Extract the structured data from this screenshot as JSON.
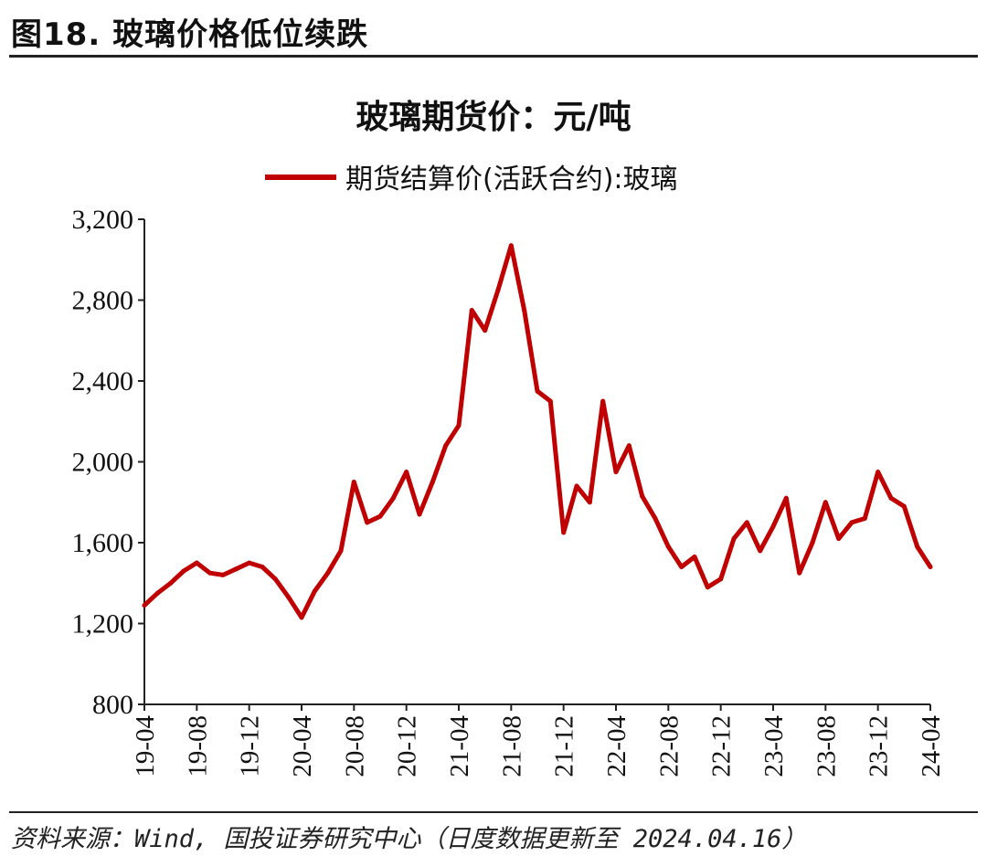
{
  "figure": {
    "title": "图18. 玻璃价格低位续跌",
    "source": "资料来源：Wind, 国投证券研究中心（日度数据更新至 2024.04.16）"
  },
  "chart_data": {
    "type": "line",
    "title": "玻璃期货价：元/吨",
    "ylim": [
      800,
      3200
    ],
    "yticks": [
      800,
      1200,
      1600,
      2000,
      2400,
      2800,
      3200
    ],
    "ytick_labels": [
      "800",
      "1,200",
      "1,600",
      "2,000",
      "2,400",
      "2,800",
      "3,200"
    ],
    "xlim": [
      "2019-04",
      "2024-04"
    ],
    "x_tick_labels": [
      "19-04",
      "19-08",
      "19-12",
      "20-04",
      "20-08",
      "20-12",
      "21-04",
      "21-08",
      "21-12",
      "22-04",
      "22-08",
      "22-12",
      "23-04",
      "23-08",
      "23-12",
      "24-04"
    ],
    "legend_position": "top-center",
    "series": [
      {
        "name": "期货结算价(活跃合约):玻璃",
        "color": "#c00000",
        "points": [
          [
            "2019-04",
            1290
          ],
          [
            "2019-05",
            1350
          ],
          [
            "2019-06",
            1400
          ],
          [
            "2019-07",
            1460
          ],
          [
            "2019-08",
            1500
          ],
          [
            "2019-09",
            1450
          ],
          [
            "2019-10",
            1440
          ],
          [
            "2019-11",
            1470
          ],
          [
            "2019-12",
            1500
          ],
          [
            "2020-01",
            1480
          ],
          [
            "2020-02",
            1420
          ],
          [
            "2020-03",
            1330
          ],
          [
            "2020-04",
            1230
          ],
          [
            "2020-05",
            1360
          ],
          [
            "2020-06",
            1450
          ],
          [
            "2020-07",
            1560
          ],
          [
            "2020-08",
            1900
          ],
          [
            "2020-09",
            1700
          ],
          [
            "2020-10",
            1730
          ],
          [
            "2020-11",
            1820
          ],
          [
            "2020-12",
            1950
          ],
          [
            "2021-01",
            1740
          ],
          [
            "2021-02",
            1900
          ],
          [
            "2021-03",
            2080
          ],
          [
            "2021-04",
            2180
          ],
          [
            "2021-05",
            2750
          ],
          [
            "2021-06",
            2650
          ],
          [
            "2021-07",
            2850
          ],
          [
            "2021-08",
            3070
          ],
          [
            "2021-09",
            2750
          ],
          [
            "2021-10",
            2350
          ],
          [
            "2021-11",
            2300
          ],
          [
            "2021-12",
            1650
          ],
          [
            "2022-01",
            1880
          ],
          [
            "2022-02",
            1800
          ],
          [
            "2022-03",
            2300
          ],
          [
            "2022-04",
            1950
          ],
          [
            "2022-05",
            2080
          ],
          [
            "2022-06",
            1830
          ],
          [
            "2022-07",
            1720
          ],
          [
            "2022-08",
            1580
          ],
          [
            "2022-09",
            1480
          ],
          [
            "2022-10",
            1530
          ],
          [
            "2022-11",
            1380
          ],
          [
            "2022-12",
            1420
          ],
          [
            "2023-01",
            1620
          ],
          [
            "2023-02",
            1700
          ],
          [
            "2023-03",
            1560
          ],
          [
            "2023-04",
            1680
          ],
          [
            "2023-05",
            1820
          ],
          [
            "2023-06",
            1450
          ],
          [
            "2023-07",
            1600
          ],
          [
            "2023-08",
            1800
          ],
          [
            "2023-09",
            1620
          ],
          [
            "2023-10",
            1700
          ],
          [
            "2023-11",
            1720
          ],
          [
            "2023-12",
            1950
          ],
          [
            "2024-01",
            1820
          ],
          [
            "2024-02",
            1780
          ],
          [
            "2024-03",
            1580
          ],
          [
            "2024-04",
            1480
          ]
        ]
      }
    ]
  }
}
